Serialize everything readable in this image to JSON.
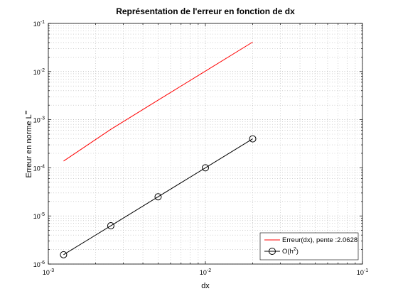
{
  "chart_data": {
    "type": "line",
    "title": "Représentation de l'erreur en fonction de dx",
    "xlabel": "dx",
    "ylabel": "Erreur en norme L",
    "ylabel_sup": "∞",
    "xscale": "log",
    "yscale": "log",
    "xlim": [
      0.001,
      0.1
    ],
    "ylim": [
      1e-06,
      0.1
    ],
    "x_ticks": [
      {
        "base": "10",
        "exp": "-3"
      },
      {
        "base": "10",
        "exp": "-2"
      },
      {
        "base": "10",
        "exp": "-1"
      }
    ],
    "y_ticks": [
      {
        "base": "10",
        "exp": "-6"
      },
      {
        "base": "10",
        "exp": "-5"
      },
      {
        "base": "10",
        "exp": "-4"
      },
      {
        "base": "10",
        "exp": "-3"
      },
      {
        "base": "10",
        "exp": "-2"
      },
      {
        "base": "10",
        "exp": "-1"
      }
    ],
    "grid": true,
    "legend_position": "bottom-right",
    "series": [
      {
        "name": "Erreur(dx), pente :2.0628",
        "color": "#ff0000",
        "marker": "none",
        "x": [
          0.00125,
          0.0025,
          0.005,
          0.01,
          0.02
        ],
        "y": [
          0.000138,
          0.00063,
          0.00255,
          0.0102,
          0.041
        ]
      },
      {
        "name": "O(h",
        "name_sup": "2",
        "name_suffix": ")",
        "color": "#000000",
        "marker": "circle",
        "x": [
          0.00125,
          0.0025,
          0.005,
          0.01,
          0.02
        ],
        "y": [
          1.5625e-06,
          6.25e-06,
          2.5e-05,
          0.0001,
          0.0004
        ]
      }
    ]
  }
}
